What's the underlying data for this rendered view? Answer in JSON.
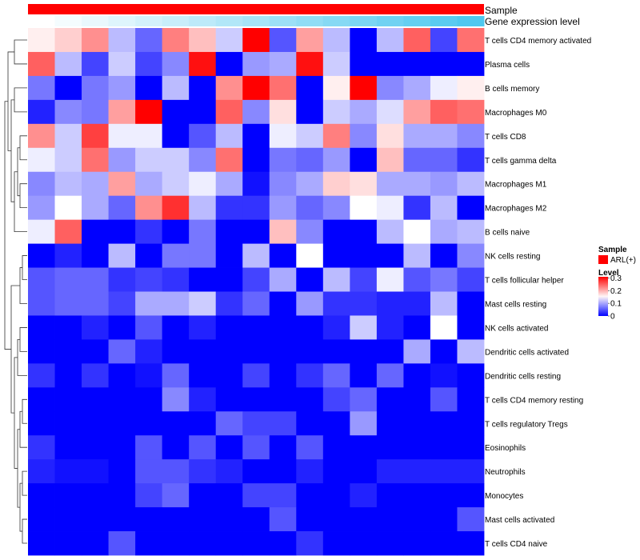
{
  "chart_data": {
    "type": "heatmap",
    "title": "",
    "annotations": [
      {
        "label": "Sample",
        "color": "#ff0000"
      },
      {
        "label": "Gene expression level",
        "color_low": "#ffffff",
        "color_high": "#4fc8ef"
      }
    ],
    "rows": [
      "T cells CD4 memory activated",
      "Plasma cells",
      "B cells memory",
      "Macrophages M0",
      "T cells CD8",
      "T cells gamma delta",
      "Macrophages M1",
      "Macrophages M2",
      "B cells naive",
      "NK cells resting",
      "T cells follicular helper",
      "Mast cells resting",
      "NK cells activated",
      "Dendritic cells activated",
      "Dendritic cells resting",
      "T cells CD4 memory resting",
      "T cells regulatory  Tregs",
      "Eosinophils",
      "Neutrophils",
      "Monocytes",
      "Mast cells activated",
      "T cells CD4 naive"
    ],
    "values": [
      [
        0.16,
        0.18,
        0.22,
        0.11,
        0.06,
        0.23,
        0.19,
        0.12,
        0.31,
        0.05,
        0.21,
        0.11,
        0.0,
        0.11,
        0.25,
        0.04,
        0.24
      ],
      [
        0.25,
        0.11,
        0.04,
        0.12,
        0.04,
        0.08,
        0.3,
        0.0,
        0.09,
        0.1,
        0.3,
        0.12,
        0.0,
        0.0,
        0.0,
        0.0,
        0.0
      ],
      [
        0.07,
        0.0,
        0.07,
        0.09,
        0.0,
        0.11,
        0.0,
        0.22,
        0.31,
        0.24,
        0.0,
        0.16,
        0.31,
        0.08,
        0.1,
        0.14,
        0.16
      ],
      [
        0.02,
        0.08,
        0.07,
        0.21,
        0.31,
        0.0,
        0.0,
        0.25,
        0.08,
        0.17,
        0.0,
        0.12,
        0.1,
        0.13,
        0.21,
        0.25,
        0.24
      ],
      [
        0.22,
        0.12,
        0.27,
        0.14,
        0.14,
        0.0,
        0.05,
        0.11,
        0.0,
        0.14,
        0.12,
        0.23,
        0.08,
        0.17,
        0.1,
        0.1,
        0.08
      ],
      [
        0.14,
        0.12,
        0.24,
        0.09,
        0.12,
        0.12,
        0.08,
        0.24,
        0.0,
        0.07,
        0.06,
        0.09,
        0.0,
        0.19,
        0.06,
        0.06,
        0.03
      ],
      [
        0.08,
        0.11,
        0.1,
        0.21,
        0.1,
        0.12,
        0.14,
        0.1,
        0.01,
        0.08,
        0.1,
        0.18,
        0.17,
        0.1,
        0.1,
        0.09,
        0.11
      ],
      [
        0.09,
        0.15,
        0.1,
        0.06,
        0.22,
        0.28,
        0.11,
        0.03,
        0.03,
        0.09,
        0.06,
        0.08,
        0.15,
        0.14,
        0.03,
        0.11,
        0.0
      ],
      [
        0.14,
        0.25,
        0.0,
        0.0,
        0.03,
        0.0,
        0.07,
        0.0,
        0.0,
        0.19,
        0.08,
        0.0,
        0.0,
        0.11,
        0.15,
        0.1,
        0.11
      ],
      [
        0.0,
        0.02,
        0.0,
        0.11,
        0.0,
        0.07,
        0.07,
        0.0,
        0.11,
        0.0,
        0.15,
        0.0,
        0.0,
        0.0,
        0.11,
        0.0,
        0.08
      ],
      [
        0.05,
        0.06,
        0.06,
        0.03,
        0.04,
        0.03,
        0.0,
        0.0,
        0.04,
        0.1,
        0.0,
        0.11,
        0.04,
        0.14,
        0.05,
        0.07,
        0.04
      ],
      [
        0.05,
        0.06,
        0.06,
        0.04,
        0.1,
        0.1,
        0.12,
        0.03,
        0.06,
        0.0,
        0.09,
        0.03,
        0.03,
        0.02,
        0.02,
        0.11,
        0.0
      ],
      [
        0.0,
        0.0,
        0.02,
        0.0,
        0.05,
        0.0,
        0.02,
        0.0,
        0.0,
        0.0,
        0.0,
        0.02,
        0.12,
        0.02,
        0.0,
        0.15,
        0.0
      ],
      [
        0.0,
        0.0,
        0.0,
        0.06,
        0.02,
        0.0,
        0.0,
        0.0,
        0.0,
        0.0,
        0.0,
        0.0,
        0.0,
        0.0,
        0.1,
        0.0,
        0.11
      ],
      [
        0.03,
        0.0,
        0.03,
        0.0,
        0.01,
        0.06,
        0.0,
        0.0,
        0.04,
        0.0,
        0.03,
        0.06,
        0.0,
        0.06,
        0.0,
        0.01,
        0.0
      ],
      [
        0.0,
        0.0,
        0.0,
        0.0,
        0.0,
        0.08,
        0.02,
        0.0,
        0.0,
        0.0,
        0.0,
        0.04,
        0.06,
        0.0,
        0.0,
        0.05,
        0.0
      ],
      [
        0.0,
        0.0,
        0.0,
        0.0,
        0.0,
        0.0,
        0.0,
        0.06,
        0.04,
        0.04,
        0.0,
        0.0,
        0.09,
        0.0,
        0.0,
        0.0,
        0.0
      ],
      [
        0.03,
        0.0,
        0.0,
        0.0,
        0.05,
        0.0,
        0.05,
        0.0,
        0.05,
        0.0,
        0.05,
        0.0,
        0.0,
        0.0,
        0.0,
        0.0,
        0.0
      ],
      [
        0.02,
        0.01,
        0.01,
        0.0,
        0.05,
        0.05,
        0.03,
        0.02,
        0.0,
        0.0,
        0.02,
        0.0,
        0.0,
        0.02,
        0.02,
        0.02,
        0.02
      ],
      [
        0.0,
        0.0,
        0.0,
        0.0,
        0.04,
        0.06,
        0.0,
        0.0,
        0.04,
        0.04,
        0.0,
        0.0,
        0.02,
        0.0,
        0.0,
        0.0,
        0.0
      ],
      [
        0.0,
        0.0,
        0.0,
        0.0,
        0.0,
        0.0,
        0.0,
        0.0,
        0.0,
        0.05,
        0.0,
        0.0,
        0.0,
        0.0,
        0.0,
        0.0,
        0.05
      ],
      [
        0.0,
        0.0,
        0.0,
        0.05,
        0.0,
        0.0,
        0.0,
        0.0,
        0.0,
        0.0,
        0.03,
        0.0,
        0.0,
        0.0,
        0.0,
        0.0,
        0.0
      ]
    ],
    "scale": {
      "min": 0,
      "mid": 0.15,
      "max": 0.31,
      "low_color": "#0000ff",
      "mid_color": "#ffffff",
      "high_color": "#ff0000"
    },
    "legend": {
      "position": "right",
      "sample_title": "Sample",
      "sample_item": "ARL(+)",
      "level_title": "Level",
      "level_ticks": [
        "0.3",
        "0.2",
        "0.1",
        "0"
      ],
      "level_tick_values": [
        0.3,
        0.2,
        0.1,
        0
      ]
    },
    "dendrogram": "rows"
  }
}
